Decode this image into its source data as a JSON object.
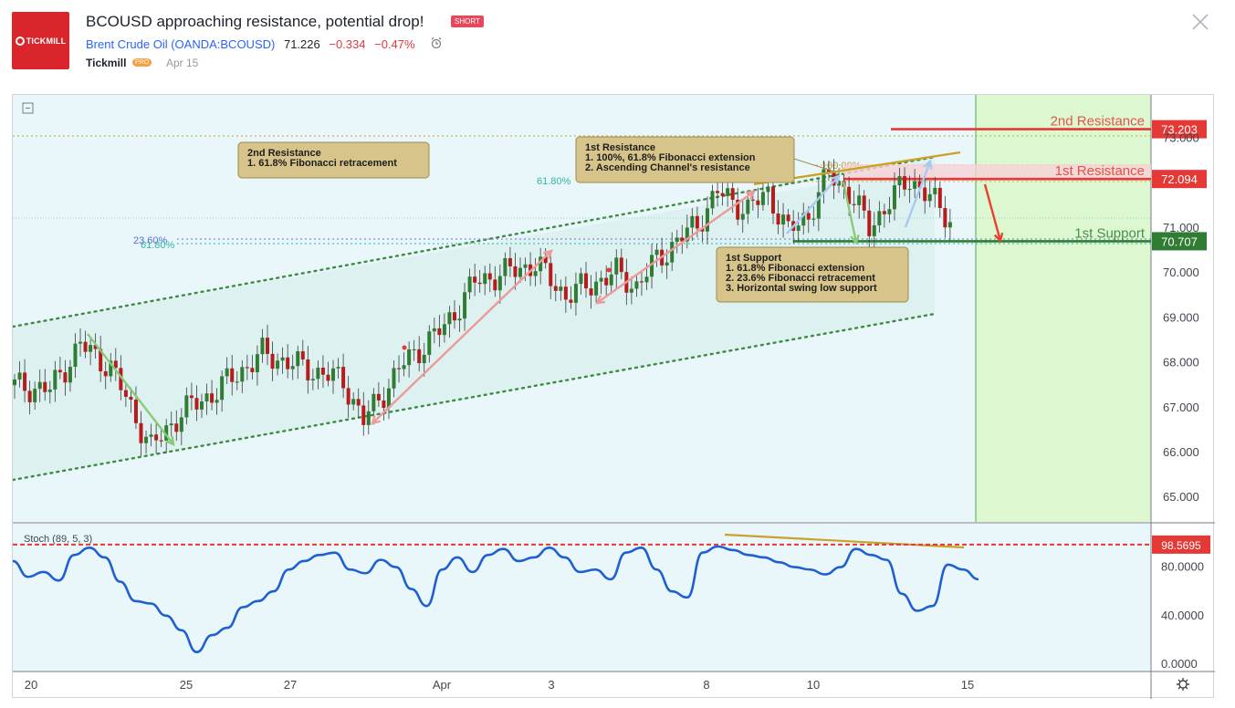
{
  "header": {
    "logo_text": "TICKMILL",
    "title": "BCOUSD approaching resistance, potential drop!",
    "badge": "SHORT",
    "symbol_name": "Brent Crude Oil",
    "symbol_code": "(OANDA:BCOUSD)",
    "last_price": "71.226",
    "change": "−0.334",
    "change_pct": "−0.47%",
    "author": "Tickmill",
    "author_badge": "PRO",
    "date": "Apr 15"
  },
  "chart_data": {
    "type": "candlestick",
    "title": "",
    "x_tick_labels": [
      "20",
      "25",
      "27",
      "Apr",
      "3",
      "8",
      "10",
      "15"
    ],
    "y_tick_labels": [
      "65.000",
      "66.000",
      "67.000",
      "68.000",
      "69.000",
      "70.000",
      "71.000",
      "73.000"
    ],
    "ylim": [
      64.4,
      74.0
    ],
    "price_path": [
      [
        0,
        67.5
      ],
      [
        8,
        67.4
      ],
      [
        14,
        68.4
      ],
      [
        20,
        67.9
      ],
      [
        28,
        66.1
      ],
      [
        34,
        66.9
      ],
      [
        40,
        67.3
      ],
      [
        50,
        68.2
      ],
      [
        58,
        67.9
      ],
      [
        66,
        67.6
      ],
      [
        70,
        66.7
      ],
      [
        78,
        68.0
      ],
      [
        86,
        68.8
      ],
      [
        92,
        69.8
      ],
      [
        98,
        70.0
      ],
      [
        104,
        70.2
      ],
      [
        110,
        69.5
      ],
      [
        116,
        69.8
      ],
      [
        120,
        70.0
      ],
      [
        124,
        69.7
      ],
      [
        128,
        70.3
      ],
      [
        136,
        71.1
      ],
      [
        140,
        71.8
      ],
      [
        146,
        71.4
      ],
      [
        150,
        71.8
      ],
      [
        154,
        70.9
      ],
      [
        158,
        71.3
      ],
      [
        162,
        72.2
      ],
      [
        166,
        71.8
      ],
      [
        170,
        71.0
      ],
      [
        174,
        71.6
      ],
      [
        178,
        72.1
      ],
      [
        180,
        71.9
      ],
      [
        186,
        71.2
      ]
    ],
    "candle_count": 186,
    "horizontal_levels": [
      {
        "label": "2nd Resistance",
        "price_tag": "73.203",
        "value": 73.203,
        "color": "#e53935"
      },
      {
        "label": "1st Resistance",
        "price_tag": "72.094",
        "value": 72.094,
        "color": "#e53935"
      },
      {
        "label": "1st Support",
        "price_tag": "70.707",
        "value": 70.707,
        "color": "#2e7d32"
      }
    ],
    "fib_labels": [
      "61.80%",
      "100.00%",
      "23.60%",
      "61.80%"
    ],
    "annotations": [
      {
        "name": "resistance2-note",
        "lines": [
          "2nd Resistance",
          "1. 61.8% Fibonacci retracement"
        ]
      },
      {
        "name": "resistance1-note",
        "lines": [
          "1st Resistance",
          "1. 100%, 61.8% Fibonacci extension",
          "2. Ascending Channel's resistance"
        ]
      },
      {
        "name": "support1-note",
        "lines": [
          "1st Support",
          "1. 61.8% Fibonacci extension",
          "2. 23.6% Fibonacci retracement",
          "3. Horizontal swing low support"
        ]
      }
    ],
    "stochastic": {
      "label": "Stoch (89, 5, 3)",
      "level_tag": "98.5695",
      "level_value": 98.5695,
      "y_tick_labels": [
        "80.0000",
        "40.0000",
        "0.0000"
      ],
      "ylim": [
        0,
        100
      ],
      "values": [
        85,
        72,
        76,
        69,
        90,
        96,
        88,
        68,
        52,
        50,
        40,
        28,
        10,
        24,
        30,
        47,
        52,
        60,
        78,
        85,
        90,
        92,
        78,
        75,
        86,
        80,
        62,
        48,
        78,
        88,
        76,
        90,
        95,
        85,
        88,
        96,
        88,
        76,
        78,
        70,
        92,
        96,
        78,
        60,
        55,
        92,
        97,
        94,
        90,
        88,
        84,
        80,
        78,
        74,
        80,
        95,
        90,
        86,
        58,
        44,
        48,
        82,
        78,
        70
      ]
    }
  }
}
